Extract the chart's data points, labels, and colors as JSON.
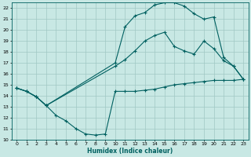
{
  "xlabel": "Humidex (Indice chaleur)",
  "xlim": [
    -0.5,
    23.5
  ],
  "ylim": [
    10,
    22.5
  ],
  "yticks": [
    10,
    11,
    12,
    13,
    14,
    15,
    16,
    17,
    18,
    19,
    20,
    21,
    22
  ],
  "xticks": [
    0,
    1,
    2,
    3,
    4,
    5,
    6,
    7,
    8,
    9,
    10,
    11,
    12,
    13,
    14,
    15,
    16,
    17,
    18,
    19,
    20,
    21,
    22,
    23
  ],
  "bg_color": "#c8e8e4",
  "grid_color": "#a0c8c4",
  "line_color": "#006060",
  "line1_x": [
    0,
    1,
    2,
    3,
    4,
    5,
    6,
    7,
    8,
    9,
    10,
    11,
    12,
    13,
    14,
    15,
    16,
    17,
    18,
    19,
    20,
    21,
    22,
    23
  ],
  "line1_y": [
    14.7,
    14.4,
    13.9,
    13.1,
    12.2,
    11.7,
    11.0,
    10.5,
    10.4,
    10.5,
    14.4,
    14.4,
    14.4,
    14.5,
    14.6,
    14.8,
    15.0,
    15.1,
    15.2,
    15.3,
    15.4,
    15.4,
    15.4,
    15.5
  ],
  "line2_x": [
    0,
    1,
    2,
    3,
    10,
    11,
    12,
    13,
    14,
    15,
    16,
    17,
    18,
    19,
    20,
    21,
    22,
    23
  ],
  "line2_y": [
    14.7,
    14.4,
    13.9,
    13.1,
    16.7,
    17.3,
    18.1,
    19.0,
    19.5,
    19.8,
    18.5,
    18.1,
    17.8,
    19.0,
    18.3,
    17.2,
    16.7,
    15.5
  ],
  "line3_x": [
    0,
    1,
    2,
    3,
    10,
    11,
    12,
    13,
    14,
    15,
    16,
    17,
    18,
    19,
    20,
    21,
    22,
    23
  ],
  "line3_y": [
    14.7,
    14.4,
    13.9,
    13.1,
    17.0,
    20.3,
    21.3,
    21.6,
    22.3,
    22.5,
    22.5,
    22.2,
    21.5,
    21.0,
    21.2,
    17.5,
    16.7,
    15.5
  ]
}
